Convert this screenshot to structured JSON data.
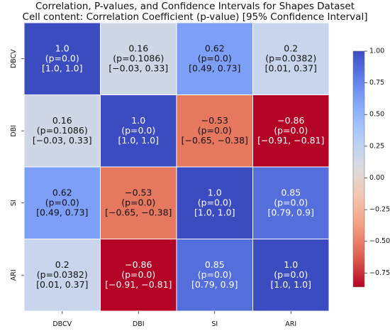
{
  "chart_data": {
    "type": "heatmap",
    "title": "Correlation, P-values, and Confidence Intervals for Shapes Dataset",
    "subtitle": "Cell content: Correlation Coefficient (p-value) [95% Confidence Interval]",
    "x_labels": [
      "DBCV",
      "DBI",
      "SI",
      "ARI"
    ],
    "y_labels": [
      "DBCV",
      "DBI",
      "SI",
      "ARI"
    ],
    "cells": [
      [
        {
          "value": 1.0,
          "line1": "1.0",
          "line2": "(p=0.0)",
          "line3": "[1.0, 1.0]"
        },
        {
          "value": 0.16,
          "line1": "0.16",
          "line2": "(p=0.1086)",
          "line3": "[−0.03, 0.33]"
        },
        {
          "value": 0.62,
          "line1": "0.62",
          "line2": "(p=0.0)",
          "line3": "[0.49, 0.73]"
        },
        {
          "value": 0.2,
          "line1": "0.2",
          "line2": "(p=0.0382)",
          "line3": "[0.01, 0.37]"
        }
      ],
      [
        {
          "value": 0.16,
          "line1": "0.16",
          "line2": "(p=0.1086)",
          "line3": "[−0.03, 0.33]"
        },
        {
          "value": 1.0,
          "line1": "1.0",
          "line2": "(p=0.0)",
          "line3": "[1.0, 1.0]"
        },
        {
          "value": -0.53,
          "line1": "−0.53",
          "line2": "(p=0.0)",
          "line3": "[−0.65, −0.38]"
        },
        {
          "value": -0.86,
          "line1": "−0.86",
          "line2": "(p=0.0)",
          "line3": "[−0.91, −0.81]"
        }
      ],
      [
        {
          "value": 0.62,
          "line1": "0.62",
          "line2": "(p=0.0)",
          "line3": "[0.49, 0.73]"
        },
        {
          "value": -0.53,
          "line1": "−0.53",
          "line2": "(p=0.0)",
          "line3": "[−0.65, −0.38]"
        },
        {
          "value": 1.0,
          "line1": "1.0",
          "line2": "(p=0.0)",
          "line3": "[1.0, 1.0]"
        },
        {
          "value": 0.85,
          "line1": "0.85",
          "line2": "(p=0.0)",
          "line3": "[0.79, 0.9]"
        }
      ],
      [
        {
          "value": 0.2,
          "line1": "0.2",
          "line2": "(p=0.0382)",
          "line3": "[0.01, 0.37]"
        },
        {
          "value": -0.86,
          "line1": "−0.86",
          "line2": "(p=0.0)",
          "line3": "[−0.91, −0.81]"
        },
        {
          "value": 0.85,
          "line1": "0.85",
          "line2": "(p=0.0)",
          "line3": "[0.79, 0.9]"
        },
        {
          "value": 1.0,
          "line1": "1.0",
          "line2": "(p=0.0)",
          "line3": "[1.0, 1.0]"
        }
      ]
    ],
    "colorbar": {
      "colormap": "coolwarm",
      "range": [
        -0.86,
        1.0
      ],
      "ticks": [
        1.0,
        0.75,
        0.5,
        0.25,
        0.0,
        -0.25,
        -0.5,
        -0.75
      ],
      "tick_labels": [
        "1.00",
        "0.75",
        "0.50",
        "0.25",
        "0.00",
        "−0.25",
        "−0.50",
        "−0.75"
      ]
    }
  }
}
